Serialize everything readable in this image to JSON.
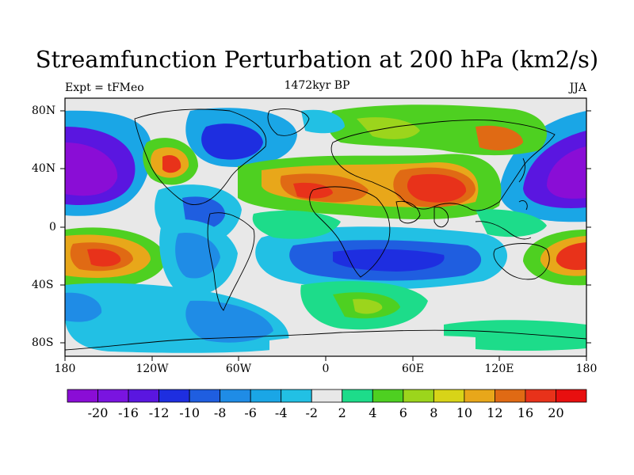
{
  "title": "Streamfunction Perturbation at 200 hPa (km2/s)",
  "left_label": "Expt = tFMeo",
  "center_label": "1472kyr BP",
  "right_label": "JJA",
  "lat_ticks": [
    "80N",
    "40N",
    "0",
    "40S",
    "80S"
  ],
  "lon_ticks": [
    "180",
    "120W",
    "60W",
    "0",
    "60E",
    "120E",
    "180"
  ],
  "colorbar": {
    "labels": [
      "-20",
      "-16",
      "-12",
      "-10",
      "-8",
      "-6",
      "-4",
      "-2",
      "2",
      "4",
      "6",
      "8",
      "10",
      "12",
      "16",
      "20"
    ],
    "colors": [
      "#8a0dd6",
      "#7a14e0",
      "#5a16e0",
      "#1e2ee0",
      "#1f5ee0",
      "#1f8ce6",
      "#1aa6e6",
      "#22c0e4",
      "#e8e8e8",
      "#1ddc8a",
      "#4ed021",
      "#9cd51c",
      "#d8d418",
      "#e8a71a",
      "#e06a14",
      "#e8321a",
      "#e80f0f"
    ]
  }
}
